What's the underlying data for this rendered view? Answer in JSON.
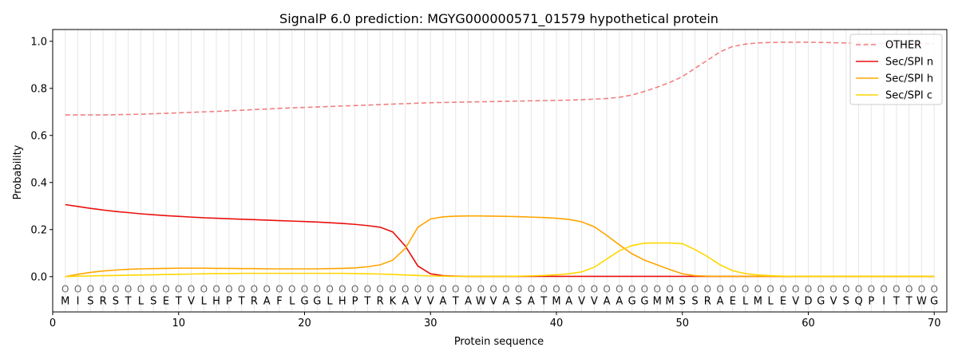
{
  "chart_data": {
    "type": "line",
    "title": "SignalP 6.0 prediction: MGYG000000571_01579 hypothetical protein",
    "xlabel": "Protein sequence",
    "ylabel": "Probability",
    "xlim": [
      0,
      71
    ],
    "ylim": [
      -0.15,
      1.05
    ],
    "xticks": [
      "0",
      "10",
      "20",
      "30",
      "40",
      "50",
      "60",
      "70"
    ],
    "yticks": [
      "0.0",
      "0.2",
      "0.4",
      "0.6",
      "0.8",
      "1.0"
    ],
    "legend_position": "top-right",
    "sequence": [
      "M",
      "I",
      "S",
      "R",
      "S",
      "T",
      "L",
      "S",
      "E",
      "T",
      "V",
      "L",
      "H",
      "P",
      "T",
      "R",
      "A",
      "F",
      "L",
      "G",
      "G",
      "L",
      "H",
      "P",
      "T",
      "R",
      "K",
      "A",
      "V",
      "V",
      "A",
      "T",
      "A",
      "W",
      "V",
      "A",
      "S",
      "A",
      "T",
      "M",
      "A",
      "V",
      "V",
      "A",
      "A",
      "G",
      "G",
      "M",
      "M",
      "S",
      "S",
      "R",
      "A",
      "E",
      "L",
      "M",
      "L",
      "E",
      "V",
      "D",
      "G",
      "V",
      "S",
      "Q",
      "P",
      "I",
      "T",
      "T",
      "W",
      "G"
    ],
    "other_marker": "O",
    "series": [
      {
        "name": "OTHER",
        "color": "#f08080",
        "dashed": true,
        "values": [
          0.687,
          0.687,
          0.687,
          0.687,
          0.688,
          0.689,
          0.69,
          0.692,
          0.694,
          0.696,
          0.698,
          0.7,
          0.702,
          0.705,
          0.707,
          0.71,
          0.712,
          0.715,
          0.717,
          0.719,
          0.721,
          0.723,
          0.725,
          0.727,
          0.729,
          0.731,
          0.733,
          0.735,
          0.737,
          0.739,
          0.74,
          0.741,
          0.742,
          0.743,
          0.744,
          0.745,
          0.746,
          0.747,
          0.748,
          0.749,
          0.75,
          0.752,
          0.754,
          0.757,
          0.762,
          0.772,
          0.787,
          0.805,
          0.825,
          0.85,
          0.885,
          0.92,
          0.955,
          0.978,
          0.988,
          0.993,
          0.995,
          0.996,
          0.996,
          0.996,
          0.995,
          0.994,
          0.993,
          0.992,
          0.991,
          0.99,
          0.99,
          0.99,
          0.99,
          0.99
        ]
      },
      {
        "name": "Sec/SPI n",
        "color": "#e8110f",
        "dashed": false,
        "values": [
          0.306,
          0.298,
          0.29,
          0.283,
          0.277,
          0.272,
          0.267,
          0.263,
          0.259,
          0.256,
          0.253,
          0.25,
          0.248,
          0.246,
          0.244,
          0.242,
          0.24,
          0.238,
          0.236,
          0.234,
          0.232,
          0.229,
          0.226,
          0.222,
          0.217,
          0.21,
          0.19,
          0.13,
          0.045,
          0.012,
          0.004,
          0.002,
          0.001,
          0.001,
          0.001,
          0.001,
          0.001,
          0.001,
          0.001,
          0.001,
          0.001,
          0.001,
          0.001,
          0.001,
          0.001,
          0.001,
          0.001,
          0.001,
          0.001,
          0.001,
          0.001,
          0.001,
          0.001,
          0.001,
          0.001,
          0.001,
          0.001,
          0.001,
          0.001,
          0.001,
          0.001,
          0.001,
          0.001,
          0.001,
          0.001,
          0.001,
          0.001,
          0.001,
          0.001,
          0.001
        ]
      },
      {
        "name": "Sec/SPI h",
        "color": "#ffa500",
        "dashed": false,
        "values": [
          0.0,
          0.01,
          0.018,
          0.024,
          0.028,
          0.031,
          0.033,
          0.034,
          0.035,
          0.036,
          0.036,
          0.036,
          0.035,
          0.035,
          0.034,
          0.034,
          0.033,
          0.033,
          0.033,
          0.033,
          0.033,
          0.034,
          0.035,
          0.037,
          0.042,
          0.05,
          0.07,
          0.12,
          0.21,
          0.245,
          0.254,
          0.257,
          0.258,
          0.258,
          0.257,
          0.256,
          0.255,
          0.253,
          0.251,
          0.248,
          0.243,
          0.233,
          0.212,
          0.175,
          0.135,
          0.097,
          0.07,
          0.05,
          0.03,
          0.012,
          0.004,
          0.002,
          0.001,
          0.001,
          0.001,
          0.001,
          0.001,
          0.001,
          0.001,
          0.001,
          0.001,
          0.001,
          0.001,
          0.001,
          0.001,
          0.001,
          0.001,
          0.001,
          0.001,
          0.001
        ]
      },
      {
        "name": "Sec/SPI c",
        "color": "#ffd700",
        "dashed": false,
        "values": [
          0.0,
          0.002,
          0.003,
          0.004,
          0.005,
          0.006,
          0.007,
          0.008,
          0.009,
          0.01,
          0.011,
          0.012,
          0.013,
          0.013,
          0.014,
          0.014,
          0.014,
          0.014,
          0.014,
          0.014,
          0.014,
          0.014,
          0.014,
          0.013,
          0.012,
          0.011,
          0.009,
          0.007,
          0.005,
          0.003,
          0.002,
          0.001,
          0.001,
          0.001,
          0.001,
          0.001,
          0.002,
          0.003,
          0.005,
          0.008,
          0.012,
          0.02,
          0.04,
          0.075,
          0.11,
          0.132,
          0.142,
          0.143,
          0.143,
          0.14,
          0.115,
          0.085,
          0.05,
          0.025,
          0.013,
          0.007,
          0.004,
          0.002,
          0.001,
          0.001,
          0.001,
          0.001,
          0.001,
          0.001,
          0.001,
          0.001,
          0.001,
          0.001,
          0.001,
          0.001
        ]
      }
    ]
  }
}
